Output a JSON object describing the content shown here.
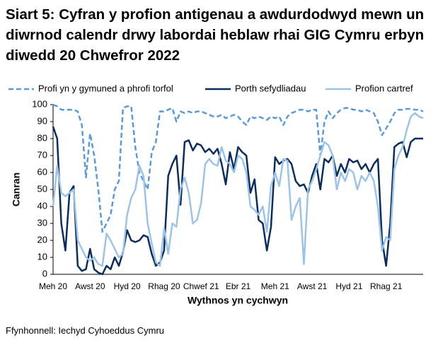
{
  "chart_data": {
    "type": "line",
    "title": "Siart 5: Cyfran y profion antigenau a awdurdodwyd mewn un diwrnod calendr drwy labordai heblaw rhai GIG Cymru erbyn diwedd 20 Chwefror 2022",
    "x_label": "Wythnos yn cychwyn",
    "y_label": "Canran",
    "source": "Ffynhonnell: Iechyd Cyhoeddus Cymru",
    "categories": [
      "Meh 20",
      null,
      null,
      null,
      null,
      null,
      null,
      null,
      null,
      "Awst 20",
      null,
      null,
      null,
      null,
      null,
      null,
      null,
      null,
      "Hyd 20",
      null,
      null,
      null,
      null,
      null,
      null,
      null,
      null,
      "Rhag 20",
      null,
      null,
      null,
      null,
      null,
      null,
      null,
      null,
      "Chwef 21",
      null,
      null,
      null,
      null,
      null,
      null,
      null,
      null,
      "Ebr 21",
      null,
      null,
      null,
      null,
      null,
      null,
      null,
      null,
      "Meh 21",
      null,
      null,
      null,
      null,
      null,
      null,
      null,
      null,
      "Awst 21",
      null,
      null,
      null,
      null,
      null,
      null,
      null,
      null,
      "Hyd 21",
      null,
      null,
      null,
      null,
      null,
      null,
      null,
      null,
      "Rhag 21",
      null,
      null,
      null,
      null,
      null,
      null,
      null,
      null,
      null
    ],
    "series": [
      {
        "name": "Profi yn y gymuned a phrofi torfol",
        "color": "#5b9bd5",
        "dashed": true,
        "values": [
          100,
          99,
          97,
          97,
          97,
          97,
          96,
          88,
          57,
          83,
          70,
          50,
          25,
          30,
          35,
          50,
          55,
          98,
          99,
          99,
          75,
          60,
          55,
          50,
          72,
          78,
          96,
          96,
          97,
          98,
          90,
          96,
          95,
          96,
          95,
          96,
          96,
          95,
          94,
          93,
          93,
          94,
          92,
          93,
          94,
          93,
          90,
          88,
          93,
          92,
          93,
          92,
          91,
          93,
          92,
          93,
          88,
          93,
          95,
          96,
          97,
          97,
          96,
          97,
          97,
          70,
          90,
          96,
          92,
          95,
          97,
          98,
          98,
          97,
          97,
          96,
          97,
          96,
          95,
          90,
          82,
          86,
          90,
          95,
          97,
          97,
          97.5,
          97.5,
          97,
          97,
          96
        ]
      },
      {
        "name": "Porth sefydliadau",
        "color": "#0b2d5c",
        "dashed": false,
        "values": [
          87,
          80,
          30,
          14,
          48,
          52,
          5,
          2,
          3,
          15,
          3,
          1,
          0,
          5,
          3,
          10,
          5,
          13,
          26,
          20,
          19,
          20,
          23,
          22,
          12,
          5,
          7,
          14,
          58,
          65,
          70,
          41,
          78,
          79,
          73,
          77,
          76,
          72,
          74,
          71,
          74,
          65,
          53,
          72,
          62,
          75,
          72,
          70,
          48,
          56,
          32,
          30,
          14,
          28,
          69,
          65,
          67,
          68,
          65,
          55,
          52,
          53,
          48,
          58,
          65,
          50,
          68,
          66,
          70,
          58,
          65,
          60,
          68,
          66,
          67,
          62,
          65,
          60,
          65,
          68,
          20,
          5,
          30,
          75,
          77,
          78,
          69,
          78,
          80,
          80,
          80
        ]
      },
      {
        "name": "Profion cartref",
        "color": "#9dc3e6",
        "dashed": false,
        "values": [
          40,
          64,
          48,
          46,
          48,
          50,
          20,
          15,
          10,
          8,
          10,
          6,
          5,
          24,
          20,
          15,
          10,
          12,
          35,
          45,
          50,
          64,
          58,
          30,
          18,
          7,
          5,
          27,
          12,
          30,
          28,
          50,
          57,
          48,
          30,
          32,
          42,
          65,
          68,
          65,
          64,
          75,
          67,
          65,
          60,
          70,
          68,
          60,
          40,
          38,
          35,
          40,
          25,
          52,
          60,
          52,
          68,
          67,
          32,
          40,
          45,
          6,
          50,
          55,
          62,
          70,
          78,
          76,
          70,
          50,
          60,
          55,
          62,
          60,
          50,
          58,
          55,
          60,
          55,
          40,
          14,
          22,
          20,
          62,
          70,
          75,
          85,
          93,
          95,
          93,
          92
        ]
      }
    ],
    "ylim": [
      0,
      100
    ],
    "yticks": [
      0,
      10,
      20,
      30,
      40,
      50,
      60,
      70,
      80,
      90,
      100
    ]
  }
}
